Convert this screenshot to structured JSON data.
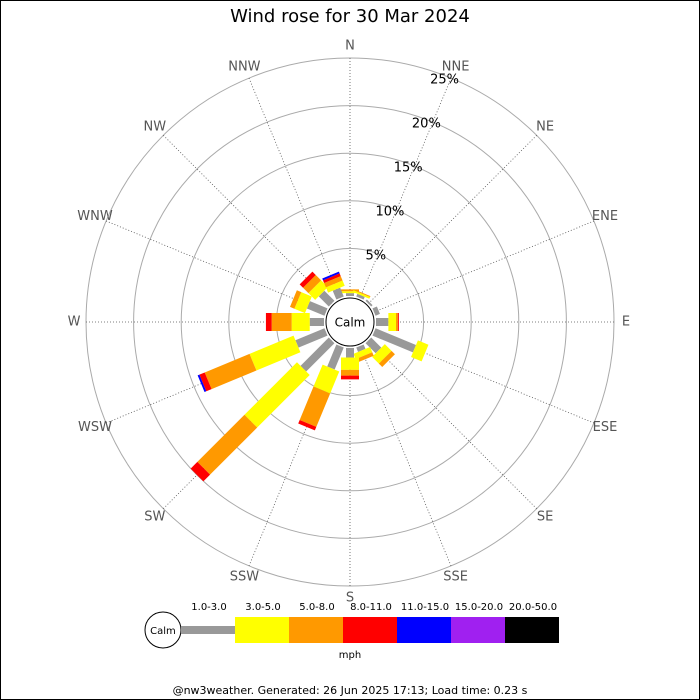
{
  "chart_data": {
    "type": "wind_rose",
    "title": "Wind rose for 30 Mar 2024",
    "calm_label": "Calm",
    "categories": [
      "N",
      "NNE",
      "NE",
      "ENE",
      "E",
      "ESE",
      "SE",
      "SSE",
      "S",
      "SSW",
      "SW",
      "WSW",
      "W",
      "WNW",
      "NW",
      "NNW"
    ],
    "ylim": [
      0,
      25
    ],
    "yticks": [
      {
        "value": 5,
        "label": "5%"
      },
      {
        "value": 10,
        "label": "10%"
      },
      {
        "value": 15,
        "label": "15%"
      },
      {
        "value": 20,
        "label": "20%"
      },
      {
        "value": 25,
        "label": "25%"
      }
    ],
    "series": [
      {
        "name": "1.0-3.0",
        "color": "#999999",
        "values": [
          0.3,
          0.3,
          0.2,
          0.5,
          1.3,
          4.6,
          1.5,
          0.5,
          1.0,
          2.5,
          4.2,
          3.3,
          1.5,
          2.0,
          1.5,
          1.0
        ]
      },
      {
        "name": "3.0-5.0",
        "color": "#ffff00",
        "values": [
          0.2,
          0.2,
          0,
          0,
          0.8,
          1.2,
          1.0,
          0.6,
          1.3,
          2.5,
          7.8,
          5.0,
          1.9,
          1.2,
          1.0,
          0.6
        ]
      },
      {
        "name": "5.0-8.0",
        "color": "#ff9900",
        "values": [
          0.2,
          0.1,
          0,
          0,
          0.2,
          0,
          0.5,
          0.4,
          0.6,
          3.8,
          7.0,
          5.1,
          2.1,
          0.5,
          0.8,
          0.5
        ]
      },
      {
        "name": "8.0-11.0",
        "color": "#ff0000",
        "values": [
          0,
          0,
          0,
          0,
          0.1,
          0,
          0,
          0,
          0.4,
          0.4,
          1.0,
          0.6,
          0.6,
          0,
          0.5,
          0.3
        ]
      },
      {
        "name": "11.0-15.0",
        "color": "#0000ff",
        "values": [
          0,
          0,
          0,
          0,
          0,
          0,
          0,
          0,
          0,
          0,
          0,
          0.2,
          0,
          0,
          0,
          0.2
        ]
      },
      {
        "name": "15.0-20.0",
        "color": "#a020f0",
        "values": [
          0,
          0,
          0,
          0,
          0,
          0,
          0,
          0,
          0,
          0,
          0,
          0,
          0,
          0,
          0,
          0
        ]
      },
      {
        "name": "20.0-50.0",
        "color": "#000000",
        "values": [
          0,
          0,
          0,
          0,
          0,
          0,
          0,
          0,
          0,
          0,
          0,
          0,
          0,
          0,
          0,
          0
        ]
      }
    ],
    "unit": "mph",
    "footer": "@nw3weather. Generated: 26 Jun 2025 17:13; Load time: 0.23 s"
  }
}
